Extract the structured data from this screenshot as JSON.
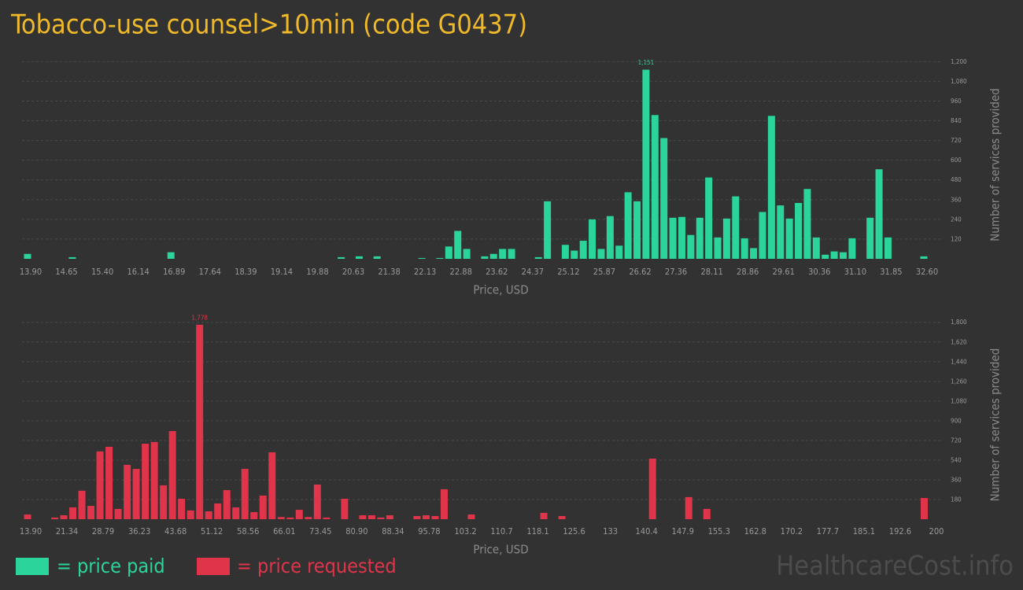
{
  "title": "Tobacco-use counsel>10min (code G0437)",
  "watermark": "HealthcareCost.info",
  "chart_data": [
    {
      "type": "bar",
      "x_label": "Price, USD",
      "y_label": "Number of services provided",
      "categories": [
        "13.90",
        null,
        null,
        null,
        "14.65",
        null,
        null,
        null,
        "15.40",
        null,
        null,
        null,
        "16.14",
        null,
        null,
        null,
        "16.89",
        null,
        null,
        null,
        "17.64",
        null,
        null,
        null,
        "18.39",
        null,
        null,
        null,
        "19.14",
        null,
        null,
        null,
        "19.88",
        null,
        null,
        null,
        "20.63",
        null,
        null,
        null,
        "21.38",
        null,
        null,
        null,
        "22.13",
        null,
        null,
        null,
        "22.88",
        null,
        null,
        null,
        "23.62",
        null,
        null,
        null,
        "24.37",
        null,
        null,
        null,
        "25.12",
        null,
        null,
        null,
        "25.87",
        null,
        null,
        null,
        "26.62",
        null,
        null,
        null,
        "27.36",
        null,
        null,
        null,
        "28.11",
        null,
        null,
        null,
        "28.86",
        null,
        null,
        null,
        "29.61",
        null,
        null,
        null,
        "30.36",
        null,
        null,
        null,
        "31.10",
        null,
        null,
        null,
        "31.85",
        null,
        null,
        null,
        "32.60"
      ],
      "series": [
        {
          "name": "= price paid",
          "color": "#2bd49a",
          "values": [
            30,
            0,
            0,
            0,
            0,
            10,
            0,
            0,
            0,
            0,
            0,
            0,
            0,
            0,
            0,
            0,
            40,
            0,
            0,
            0,
            0,
            0,
            0,
            0,
            0,
            0,
            0,
            0,
            0,
            0,
            0,
            0,
            0,
            0,
            0,
            10,
            0,
            15,
            0,
            15,
            0,
            0,
            0,
            0,
            5,
            0,
            5,
            75,
            170,
            60,
            0,
            15,
            30,
            60,
            60,
            0,
            0,
            10,
            350,
            0,
            85,
            50,
            110,
            240,
            60,
            260,
            80,
            405,
            350,
            1151,
            875,
            735,
            250,
            255,
            145,
            250,
            495,
            130,
            245,
            380,
            125,
            65,
            285,
            870,
            325,
            245,
            340,
            425,
            130,
            25,
            45,
            40,
            125,
            0,
            250,
            545,
            130,
            0,
            0,
            0,
            15
          ],
          "value_labels": [
            null,
            null,
            null,
            null,
            null,
            null,
            null,
            null,
            null,
            null,
            null,
            null,
            null,
            null,
            null,
            null,
            null,
            null,
            null,
            null,
            null,
            null,
            null,
            null,
            null,
            null,
            null,
            null,
            null,
            null,
            null,
            null,
            null,
            null,
            null,
            null,
            null,
            null,
            null,
            null,
            null,
            null,
            null,
            null,
            null,
            null,
            null,
            null,
            null,
            null,
            null,
            null,
            null,
            null,
            null,
            null,
            null,
            null,
            null,
            null,
            null,
            null,
            null,
            null,
            null,
            null,
            null,
            null,
            null,
            "1,151",
            null,
            null,
            null,
            null,
            null,
            null,
            null,
            null,
            null,
            null,
            null,
            null,
            null,
            null,
            null,
            null,
            null,
            null,
            null,
            null,
            null,
            null,
            null,
            null,
            null,
            null,
            null,
            null,
            null,
            null,
            null
          ]
        }
      ],
      "ylim": [
        0,
        1240
      ],
      "yticks": [
        120,
        240,
        360,
        480,
        600,
        720,
        840,
        960,
        {
          "value": 1080,
          "label": "1,080"
        },
        {
          "value": 1200,
          "label": "1,200"
        }
      ],
      "grid": true
    },
    {
      "type": "bar",
      "x_label": "Price, USD",
      "y_label": "Number of services provided",
      "categories": [
        "13.90",
        null,
        null,
        null,
        "21.34",
        null,
        null,
        null,
        "28.79",
        null,
        null,
        null,
        "36.23",
        null,
        null,
        null,
        "43.68",
        null,
        null,
        null,
        "51.12",
        null,
        null,
        null,
        "58.56",
        null,
        null,
        null,
        "66.01",
        null,
        null,
        null,
        "73.45",
        null,
        null,
        null,
        "80.90",
        null,
        null,
        null,
        "88.34",
        null,
        null,
        null,
        "95.78",
        null,
        null,
        null,
        "103.2",
        null,
        null,
        null,
        "110.7",
        null,
        null,
        null,
        "118.1",
        null,
        null,
        null,
        "125.6",
        null,
        null,
        null,
        "133",
        null,
        null,
        null,
        "140.4",
        null,
        null,
        null,
        "147.9",
        null,
        null,
        null,
        "155.3",
        null,
        null,
        null,
        "162.8",
        null,
        null,
        null,
        "170.2",
        null,
        null,
        null,
        "177.7",
        null,
        null,
        null,
        "185.1",
        null,
        null,
        null,
        "192.6",
        null,
        null,
        null,
        "200"
      ],
      "series": [
        {
          "name": "= price requested",
          "color": "#e0344a",
          "values": [
            43,
            0,
            0,
            15,
            36,
            108,
            260,
            122,
            620,
            662,
            94,
            497,
            460,
            690,
            706,
            310,
            806,
            187,
            80,
            1778,
            72,
            144,
            266,
            108,
            460,
            65,
            216,
            612,
            20,
            15,
            86,
            20,
            317,
            15,
            0,
            187,
            0,
            36,
            36,
            15,
            36,
            0,
            0,
            29,
            36,
            29,
            274,
            0,
            0,
            43,
            0,
            0,
            0,
            0,
            0,
            0,
            0,
            58,
            0,
            29,
            0,
            0,
            0,
            0,
            0,
            0,
            0,
            0,
            0,
            554,
            0,
            0,
            0,
            202,
            0,
            94,
            0,
            0,
            0,
            0,
            0,
            0,
            0,
            0,
            0,
            0,
            0,
            0,
            0,
            0,
            0,
            0,
            0,
            0,
            0,
            0,
            0,
            0,
            0,
            194,
            0
          ],
          "value_labels": [
            null,
            null,
            null,
            null,
            null,
            null,
            null,
            null,
            null,
            null,
            null,
            null,
            null,
            null,
            null,
            null,
            null,
            null,
            null,
            "1,778",
            null,
            null,
            null,
            null,
            null,
            null,
            null,
            null,
            null,
            null,
            null,
            null,
            null,
            null,
            null,
            null,
            null,
            null,
            null,
            null,
            null,
            null,
            null,
            null,
            null,
            null,
            null,
            null,
            null,
            null,
            null,
            null,
            null,
            null,
            null,
            null,
            null,
            null,
            null,
            null,
            null,
            null,
            null,
            null,
            null,
            null,
            null,
            null,
            null,
            null,
            null,
            null,
            null,
            null,
            null,
            null,
            null,
            null,
            null,
            null,
            null,
            null,
            null,
            null,
            null,
            null,
            null,
            null,
            null,
            null,
            null,
            null,
            null,
            null,
            null,
            null,
            null,
            null,
            null,
            null,
            null
          ]
        }
      ],
      "ylim": [
        0,
        1870
      ],
      "yticks": [
        180,
        360,
        540,
        720,
        900,
        {
          "value": 1080,
          "label": "1,080"
        },
        {
          "value": 1260,
          "label": "1,260"
        },
        {
          "value": 1440,
          "label": "1,440"
        },
        {
          "value": 1620,
          "label": "1,620"
        },
        {
          "value": 1800,
          "label": "1,800"
        }
      ],
      "grid": true
    }
  ]
}
